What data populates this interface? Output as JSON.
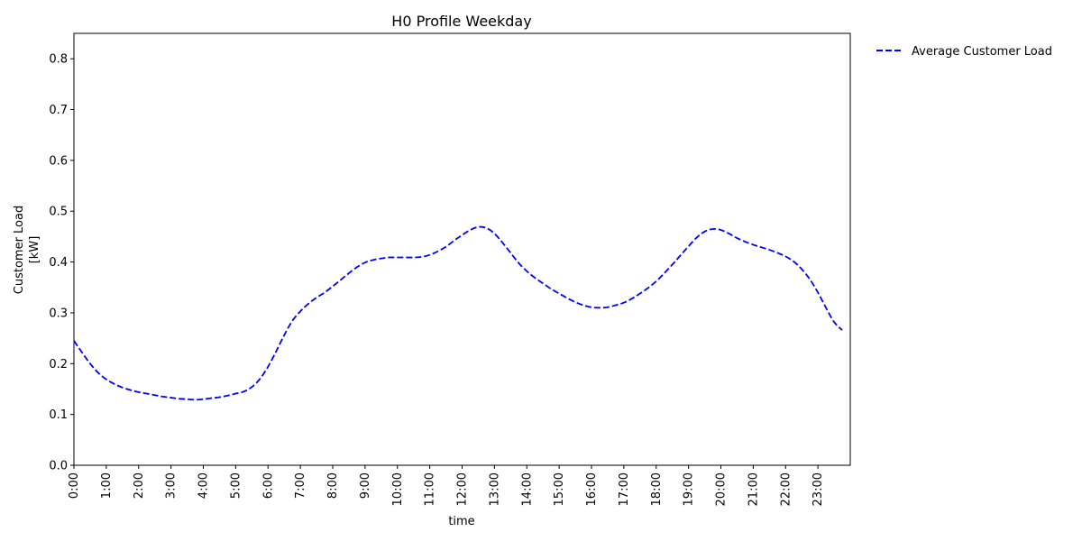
{
  "chart_data": {
    "type": "line",
    "title": "H0 Profile Weekday",
    "xlabel": "time",
    "ylabel_lines": [
      "Customer Load",
      "[kW]"
    ],
    "xlim": [
      0,
      24
    ],
    "ylim": [
      0,
      0.85
    ],
    "xticks": [
      "0:00",
      "1:00",
      "2:00",
      "3:00",
      "4:00",
      "5:00",
      "6:00",
      "7:00",
      "8:00",
      "9:00",
      "10:00",
      "11:00",
      "12:00",
      "13:00",
      "14:00",
      "15:00",
      "16:00",
      "17:00",
      "18:00",
      "19:00",
      "20:00",
      "21:00",
      "22:00",
      "23:00"
    ],
    "yticks": [
      "0.0",
      "0.1",
      "0.2",
      "0.3",
      "0.4",
      "0.5",
      "0.6",
      "0.7",
      "0.8"
    ],
    "grid": false,
    "legend_position": "outside-top-right",
    "series": [
      {
        "name": "Average Customer Load",
        "color": "#0000ff",
        "style": "dashed",
        "x": [
          0,
          0.25,
          0.5,
          0.75,
          1,
          1.25,
          1.5,
          1.75,
          2,
          2.25,
          2.5,
          2.75,
          3,
          3.25,
          3.5,
          3.75,
          4,
          4.25,
          4.5,
          4.75,
          5,
          5.25,
          5.5,
          5.75,
          6,
          6.25,
          6.5,
          6.75,
          7,
          7.25,
          7.5,
          7.75,
          8,
          8.25,
          8.5,
          8.75,
          9,
          9.25,
          9.5,
          9.75,
          10,
          10.25,
          10.5,
          10.75,
          11,
          11.25,
          11.5,
          11.75,
          12,
          12.25,
          12.5,
          12.75,
          13,
          13.25,
          13.5,
          13.75,
          14,
          14.25,
          14.5,
          14.75,
          15,
          15.25,
          15.5,
          15.75,
          16,
          16.25,
          16.5,
          16.75,
          17,
          17.25,
          17.5,
          17.75,
          18,
          18.25,
          18.5,
          18.75,
          19,
          19.25,
          19.5,
          19.75,
          20,
          20.25,
          20.5,
          20.75,
          21,
          21.25,
          21.5,
          21.75,
          22,
          22.25,
          22.5,
          22.75,
          23,
          23.25,
          23.5,
          23.75
        ],
        "values": [
          0.245,
          0.222,
          0.2,
          0.182,
          0.169,
          0.16,
          0.153,
          0.148,
          0.144,
          0.141,
          0.138,
          0.135,
          0.133,
          0.131,
          0.13,
          0.129,
          0.13,
          0.132,
          0.134,
          0.137,
          0.141,
          0.145,
          0.154,
          0.17,
          0.194,
          0.224,
          0.256,
          0.284,
          0.303,
          0.318,
          0.33,
          0.34,
          0.352,
          0.365,
          0.378,
          0.39,
          0.399,
          0.404,
          0.407,
          0.409,
          0.409,
          0.409,
          0.409,
          0.41,
          0.414,
          0.421,
          0.43,
          0.442,
          0.453,
          0.463,
          0.469,
          0.467,
          0.456,
          0.438,
          0.418,
          0.398,
          0.382,
          0.369,
          0.358,
          0.347,
          0.338,
          0.329,
          0.321,
          0.315,
          0.311,
          0.31,
          0.311,
          0.315,
          0.32,
          0.328,
          0.338,
          0.349,
          0.362,
          0.378,
          0.395,
          0.413,
          0.431,
          0.448,
          0.46,
          0.465,
          0.463,
          0.456,
          0.447,
          0.44,
          0.434,
          0.429,
          0.424,
          0.418,
          0.411,
          0.401,
          0.386,
          0.366,
          0.34,
          0.31,
          0.282,
          0.266
        ]
      }
    ]
  }
}
